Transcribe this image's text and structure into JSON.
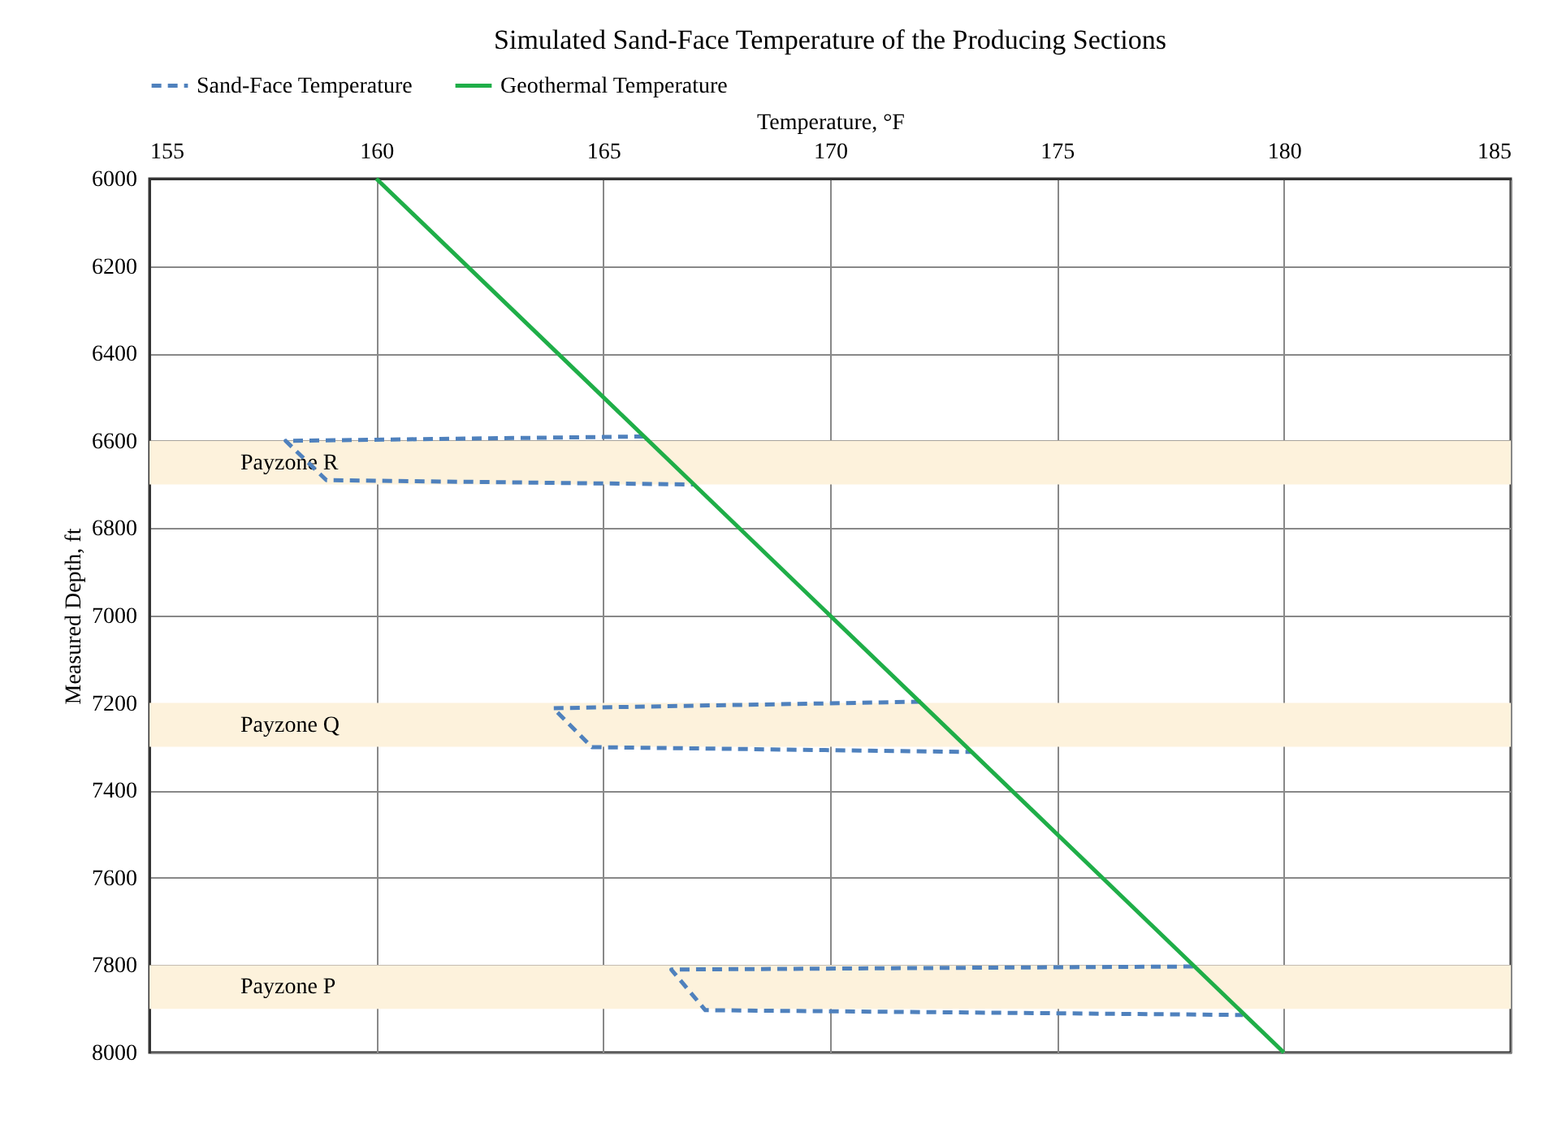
{
  "chart_data": {
    "type": "line",
    "title": "Simulated Sand-Face Temperature of the Producing Sections",
    "xlabel": "Temperature, °F",
    "ylabel": "Measured Depth, ft",
    "series": [
      {
        "name": "Sand-Face Temperature",
        "color": "#4f81bd",
        "line_style": "dashed",
        "x": [
          165.9,
          158,
          158.9,
          167,
          null,
          172,
          163.9,
          164.75,
          173.1,
          null,
          178,
          166.5,
          167.25,
          179.1
        ],
        "values": [
          6590,
          6600,
          6690,
          6700,
          null,
          7197,
          7212,
          7301,
          7312,
          null,
          7803,
          7810,
          7903,
          7914
        ]
      },
      {
        "name": "Geothermal Temperature",
        "color": "#1fae48",
        "line_style": "solid",
        "x": [
          160,
          180
        ],
        "values": [
          6000,
          8000
        ]
      }
    ],
    "bands": [
      {
        "axis": "y",
        "from": 6600,
        "to": 6700,
        "label": "Payzone R",
        "color": "#fdf2dc"
      },
      {
        "axis": "y",
        "from": 7200,
        "to": 7300,
        "label": "Payzone Q",
        "color": "#fdf2dc"
      },
      {
        "axis": "y",
        "from": 7800,
        "to": 7900,
        "label": "Payzone P",
        "color": "#fdf2dc"
      }
    ],
    "xlim": [
      155,
      185
    ],
    "xticks": [
      155,
      160,
      165,
      170,
      175,
      180,
      185
    ],
    "ylim": [
      8000,
      6000
    ],
    "yticks": [
      6000,
      6200,
      6400,
      6600,
      6800,
      7000,
      7200,
      7400,
      7600,
      7800,
      8000
    ],
    "grid": true,
    "legend": "top"
  }
}
